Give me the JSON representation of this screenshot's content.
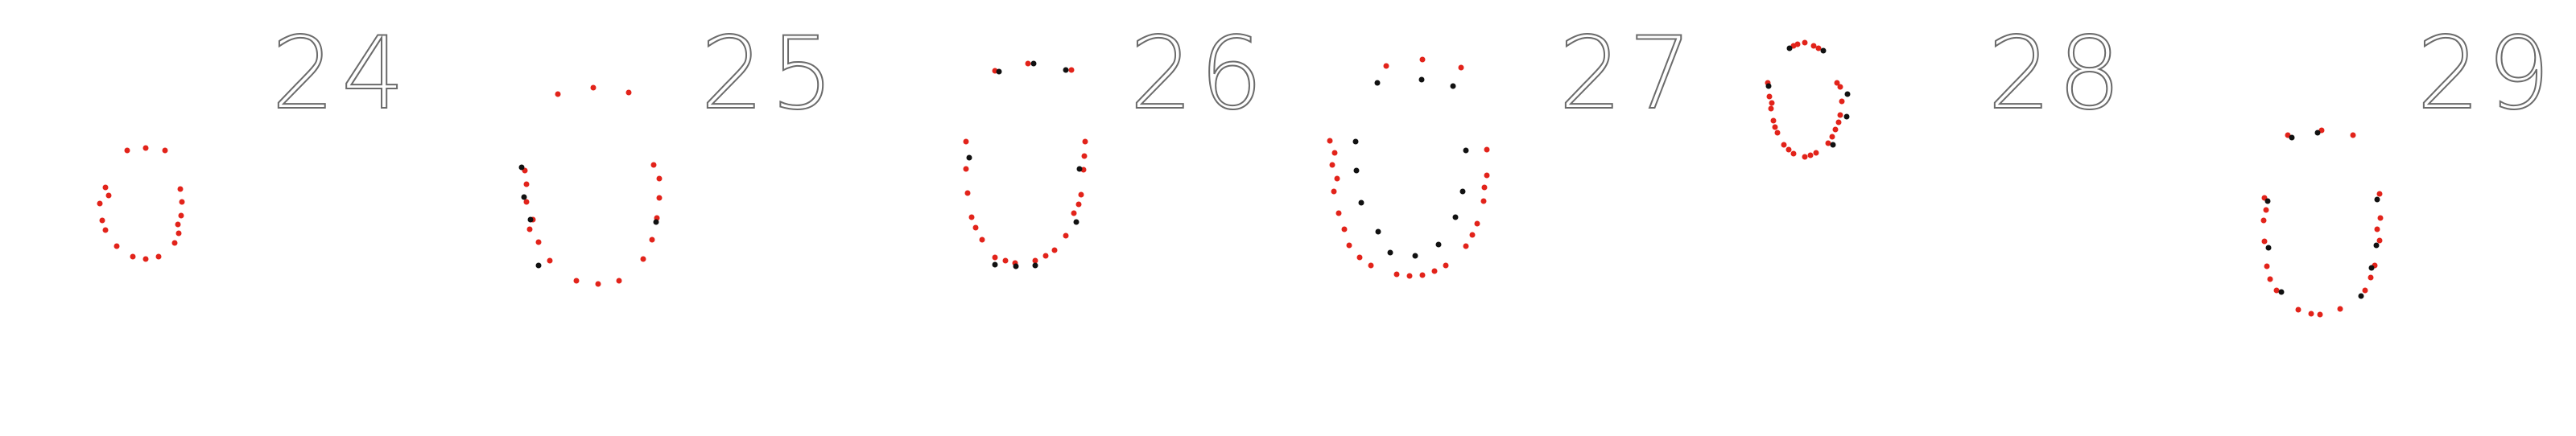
{
  "panels": [
    {
      "label": "24",
      "black_count": 0,
      "red_count": 18
    },
    {
      "label": "25",
      "black_count": 5,
      "red_count": 19
    },
    {
      "label": "26",
      "black_count": 9,
      "red_count": 22
    },
    {
      "label": "27",
      "black_count": 13,
      "red_count": 25
    },
    {
      "label": "28",
      "black_count": 6,
      "red_count": 26
    },
    {
      "label": "29",
      "black_count": 9,
      "red_count": 21
    }
  ],
  "colors": {
    "background": "#ffffff",
    "red_points": "#e2231a",
    "black_points": "#111111",
    "number_outline": "#6b6b6b"
  }
}
